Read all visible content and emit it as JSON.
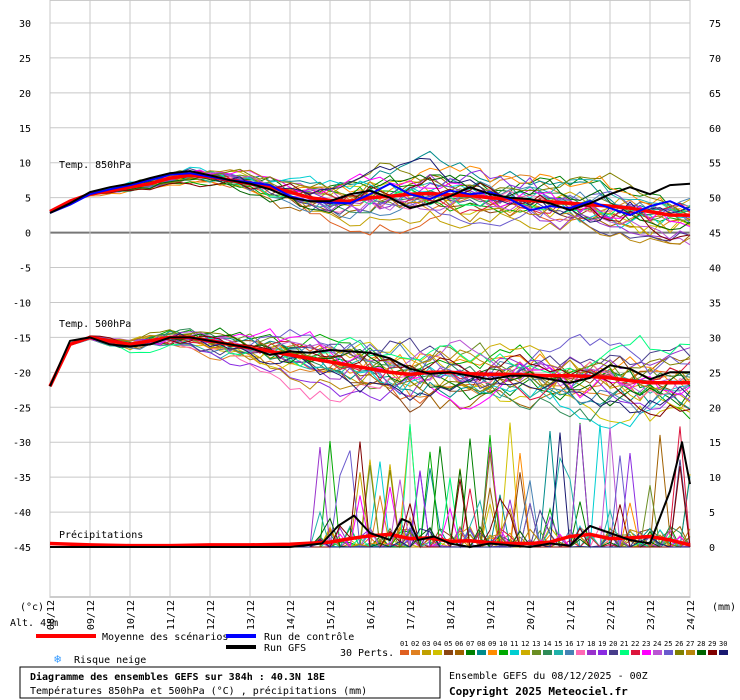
{
  "chart_data": {
    "type": "line",
    "left_axis": {
      "ticks": [
        30,
        25,
        20,
        15,
        10,
        5,
        0,
        -5,
        -10,
        -15,
        -20,
        -25,
        -30,
        -35,
        -40,
        -45
      ],
      "unit": "(°c)"
    },
    "right_axis": {
      "ticks": [
        75,
        70,
        65,
        60,
        55,
        50,
        45,
        40,
        35,
        30,
        25,
        20,
        15,
        10,
        5,
        0
      ],
      "unit": "(mm)"
    },
    "x_labels": [
      "09/12",
      "10/12",
      "11/12",
      "12/12",
      "13/12",
      "14/12",
      "15/12",
      "16/12",
      "17/12",
      "18/12",
      "19/12",
      "20/12",
      "21/12",
      "22/12",
      "23/12",
      "24/12"
    ],
    "x_start_label": "08/12",
    "x_range_days": [
      0,
      16
    ],
    "panel_labels": {
      "t850": "Temp. 850hPa",
      "t500": "Temp. 500hPa",
      "precip": "Précipitations"
    },
    "altitude": "Alt. 43m",
    "grid": true,
    "series": [
      {
        "name": "Moyenne des scénarios",
        "panel": "t850",
        "x": [
          0,
          0.5,
          1,
          1.5,
          2,
          2.5,
          3,
          3.5,
          4,
          4.5,
          5,
          5.5,
          6,
          6.5,
          7,
          7.5,
          8,
          8.5,
          9,
          9.5,
          10,
          10.5,
          11,
          11.5,
          12,
          12.5,
          13,
          13.5,
          14,
          14.5,
          15,
          15.5,
          16
        ],
        "y": [
          3,
          4.5,
          5.5,
          6,
          6.5,
          7,
          7.8,
          8.2,
          8,
          7.5,
          7,
          6.5,
          5.8,
          5,
          4.6,
          4.5,
          5,
          5.2,
          5.5,
          5.6,
          5.4,
          5.3,
          5,
          4.8,
          4.6,
          4.4,
          4.2,
          4.0,
          3.8,
          3.5,
          3.0,
          2.5,
          2.5
        ]
      },
      {
        "name": "Moyenne des scénarios",
        "panel": "t500",
        "x": [
          0,
          0.5,
          1,
          1.5,
          2,
          2.5,
          3,
          3.5,
          4,
          4.5,
          5,
          5.5,
          6,
          6.5,
          7,
          7.5,
          8,
          8.5,
          9,
          9.5,
          10,
          10.5,
          11,
          11.5,
          12,
          12.5,
          13,
          13.5,
          14,
          14.5,
          15,
          15.5,
          16
        ],
        "y": [
          -22,
          -16,
          -15,
          -15.5,
          -16,
          -15.5,
          -15,
          -15,
          -15.5,
          -16,
          -16.5,
          -17,
          -17.5,
          -18,
          -18.5,
          -19,
          -19.5,
          -20,
          -20.3,
          -20,
          -20,
          -20.2,
          -20.3,
          -20.3,
          -20.4,
          -20.5,
          -20.5,
          -20.6,
          -20.8,
          -21.2,
          -21.5,
          -21.5,
          -21.5
        ]
      },
      {
        "name": "Moyenne des scénarios",
        "panel": "precip",
        "x": [
          0,
          1,
          2,
          3,
          4,
          5,
          6,
          7,
          7.5,
          8,
          8.5,
          9,
          9.5,
          10,
          10.5,
          11,
          11.5,
          12,
          12.5,
          13,
          13.5,
          14,
          14.5,
          15,
          15.5,
          16
        ],
        "y": [
          0.5,
          0.3,
          0.2,
          0.2,
          0.3,
          0.3,
          0.4,
          0.7,
          1.2,
          1.6,
          1.8,
          1.2,
          1.3,
          0.8,
          0.9,
          0.6,
          0.5,
          0.5,
          0.7,
          1.5,
          1.8,
          1.2,
          1.3,
          1.5,
          1.0,
          0.3
        ]
      },
      {
        "name": "Run de contrôle",
        "panel": "t850",
        "x": [
          0,
          0.5,
          1,
          1.5,
          2,
          2.5,
          3,
          3.5,
          4,
          4.5,
          5,
          5.5,
          6,
          6.5,
          7,
          7.5,
          8,
          8.5,
          9,
          9.5,
          10,
          10.5,
          11,
          11.5,
          12,
          12.5,
          13,
          13.5,
          14,
          14.5,
          15,
          15.5,
          16
        ],
        "y": [
          2.8,
          4,
          5.5,
          6.2,
          6.8,
          7.5,
          8.3,
          8.5,
          8,
          7.5,
          7.2,
          6.8,
          5.2,
          4.5,
          4.3,
          4.2,
          5.5,
          7,
          5.5,
          4.8,
          6,
          5.5,
          5.8,
          4.8,
          3.2,
          3.8,
          3.5,
          4.5,
          3.5,
          2.5,
          3.8,
          4.5,
          3.2
        ]
      },
      {
        "name": "Run GFS",
        "panel": "t850",
        "x": [
          0,
          0.5,
          1,
          1.5,
          2,
          2.5,
          3,
          3.5,
          4,
          4.5,
          5,
          5.5,
          6,
          6.5,
          7,
          7.5,
          8,
          8.5,
          9,
          9.5,
          10,
          10.5,
          11,
          11.5,
          12,
          12.5,
          13,
          13.5,
          14,
          14.5,
          15,
          15.5,
          16
        ],
        "y": [
          2.8,
          4.2,
          5.8,
          6.5,
          7,
          7.8,
          8.5,
          8.8,
          8.2,
          7.5,
          7,
          6.2,
          5,
          4.5,
          4.5,
          5.5,
          6,
          5,
          3.5,
          4.2,
          5.2,
          6.5,
          5.5,
          5,
          4.8,
          4.2,
          3.2,
          4.2,
          5.5,
          6.5,
          5.5,
          6.8,
          7
        ]
      },
      {
        "name": "Run GFS",
        "panel": "t500",
        "x": [
          0,
          0.5,
          1,
          1.5,
          2,
          2.5,
          3,
          3.5,
          4,
          4.5,
          5,
          5.5,
          6,
          6.5,
          7,
          7.5,
          8,
          8.5,
          9,
          9.5,
          10,
          10.5,
          11,
          11.5,
          12,
          12.5,
          13,
          13.5,
          14,
          14.5,
          15,
          15.5,
          16
        ],
        "y": [
          -22,
          -15.5,
          -15,
          -16,
          -16.3,
          -16,
          -15,
          -15,
          -15.5,
          -16,
          -16.5,
          -17.5,
          -17,
          -17.2,
          -16.8,
          -17,
          -17.2,
          -18,
          -19.5,
          -20.2,
          -20,
          -20.5,
          -21,
          -20.5,
          -20.5,
          -21,
          -21.5,
          -20.8,
          -19,
          -19.5,
          -21,
          -20,
          -20
        ]
      },
      {
        "name": "Run GFS",
        "panel": "precip",
        "x": [
          0,
          6,
          6.8,
          7.2,
          7.6,
          8,
          8.5,
          8.8,
          9,
          9.2,
          9.6,
          10,
          10.5,
          11,
          12,
          12.5,
          13,
          13.5,
          14,
          14.5,
          15,
          15.5,
          15.8,
          16
        ],
        "y": [
          0,
          0,
          0.5,
          3,
          4.5,
          2,
          1,
          4,
          3.5,
          1,
          1.5,
          0.5,
          0,
          0.5,
          0,
          0.5,
          0.2,
          3,
          2,
          1,
          0.5,
          8,
          15,
          9
        ]
      }
    ],
    "perturbations": {
      "label": "30 Perts.",
      "count": 30
    },
    "legend": {
      "mean": "Moyenne des scénarios",
      "control": "Run de contrôle",
      "gfs": "Run GFS",
      "snow": "Risque neige"
    },
    "title": "Diagramme des ensembles GEFS sur 384h : 40.3N 18E",
    "subtitle": "Températures 850hPa et 500hPa (°C) , précipitations (mm)",
    "run_info": "Ensemble GEFS du 08/12/2025 - 00Z",
    "copyright": "Copyright 2025 Meteociel.fr"
  },
  "colors": {
    "mean": "#ff0000",
    "control": "#0000ff",
    "gfs": "#000000",
    "snow": "#3399ff",
    "pert_palette": [
      "#e06020",
      "#e08020",
      "#c0a000",
      "#d0c000",
      "#8b4513",
      "#a06000",
      "#008000",
      "#008b8b",
      "#ff8c00",
      "#00aa00",
      "#00ced1",
      "#cdad00",
      "#6b8e23",
      "#2e8b57",
      "#20b2aa",
      "#4682b4",
      "#ff69b4",
      "#9932cc",
      "#8a2be2",
      "#483d8b",
      "#00ff7f",
      "#dc143c",
      "#ff00ff",
      "#ba55d3",
      "#6a5acd",
      "#808000",
      "#b8860b",
      "#006400",
      "#800000",
      "#191970"
    ]
  }
}
